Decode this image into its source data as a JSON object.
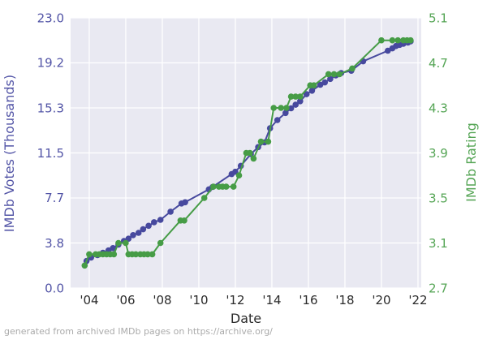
{
  "figure": {
    "footer": "generated from archived IMDb pages on https://archive.org/"
  },
  "chart_data": {
    "type": "line",
    "title": "",
    "xlabel": "Date",
    "grid": true,
    "legend": "none",
    "plot_background": "#e9e9f2",
    "grid_color": "#ffffff",
    "x_axis": {
      "lim": [
        2002.98,
        2022.18
      ],
      "tick_years": [
        2004,
        2006,
        2008,
        2010,
        2012,
        2014,
        2016,
        2018,
        2020,
        2022
      ],
      "tick_labels": [
        "'04",
        "'06",
        "'08",
        "'10",
        "'12",
        "'14",
        "'16",
        "'18",
        "'20",
        "'22"
      ],
      "color": "#2b2b2b"
    },
    "left_axis": {
      "label": "IMDb Votes (Thousands)",
      "lim": [
        0.0,
        23.0
      ],
      "tick_values": [
        0.0,
        3.8333,
        7.6667,
        11.5,
        15.3333,
        19.1667,
        23.0
      ],
      "tick_labels": [
        "0.0",
        "3.8",
        "7.7",
        "11.5",
        "15.3",
        "19.2",
        "23.0"
      ],
      "color": "#5254a6"
    },
    "right_axis": {
      "label": "IMDb Rating",
      "lim": [
        2.7,
        5.1
      ],
      "tick_values": [
        2.7,
        3.1,
        3.5,
        3.9,
        4.3,
        4.7,
        5.1
      ],
      "tick_labels": [
        "2.7",
        "3.1",
        "3.5",
        "3.9",
        "4.3",
        "4.7",
        "5.1"
      ],
      "color": "#55a555"
    },
    "series": [
      {
        "name": "IMDb Votes (Thousands)",
        "axis": "left",
        "color": "#47499e",
        "marker": "circle",
        "x": [
          2003.85,
          2004.1,
          2004.45,
          2004.75,
          2005.05,
          2005.3,
          2005.6,
          2005.9,
          2006.15,
          2006.4,
          2006.7,
          2006.95,
          2007.25,
          2007.55,
          2007.9,
          2008.45,
          2009.05,
          2009.25,
          2010.55,
          2010.75,
          2011.8,
          2012.0,
          2012.3,
          2012.85,
          2013.25,
          2013.6,
          2013.9,
          2014.3,
          2014.75,
          2015.05,
          2015.3,
          2015.55,
          2015.9,
          2016.2,
          2016.65,
          2016.9,
          2017.2,
          2017.5,
          2017.8,
          2018.35,
          2019.0,
          2020.35,
          2020.6,
          2020.8,
          2021.0,
          2021.2,
          2021.45,
          2021.6
        ],
        "y": [
          2.3,
          2.6,
          2.8,
          3.0,
          3.2,
          3.4,
          3.7,
          4.0,
          4.2,
          4.5,
          4.7,
          5.0,
          5.3,
          5.6,
          5.8,
          6.5,
          7.2,
          7.3,
          8.4,
          8.6,
          9.7,
          9.9,
          10.4,
          11.4,
          12.0,
          12.4,
          13.6,
          14.3,
          14.9,
          15.3,
          15.6,
          15.9,
          16.5,
          16.8,
          17.3,
          17.5,
          17.8,
          18.1,
          18.3,
          18.5,
          19.3,
          20.2,
          20.4,
          20.6,
          20.7,
          20.8,
          20.9,
          21.0
        ]
      },
      {
        "name": "IMDb Rating",
        "axis": "right",
        "color": "#469c46",
        "marker": "circle",
        "x": [
          2003.75,
          2004.0,
          2004.35,
          2004.55,
          2004.75,
          2004.95,
          2005.15,
          2005.35,
          2005.6,
          2006.0,
          2006.15,
          2006.35,
          2006.55,
          2006.8,
          2007.0,
          2007.2,
          2007.45,
          2007.9,
          2009.0,
          2009.2,
          2010.3,
          2010.8,
          2011.1,
          2011.3,
          2011.5,
          2011.9,
          2012.2,
          2012.6,
          2012.8,
          2013.0,
          2013.4,
          2013.8,
          2014.1,
          2014.5,
          2014.8,
          2015.05,
          2015.3,
          2015.55,
          2016.1,
          2016.3,
          2017.1,
          2017.4,
          2017.7,
          2018.4,
          2020.0,
          2020.6,
          2020.9,
          2021.2,
          2021.4,
          2021.6
        ],
        "y": [
          2.9,
          3.0,
          3.0,
          3.0,
          3.0,
          3.0,
          3.0,
          3.0,
          3.1,
          3.1,
          3.0,
          3.0,
          3.0,
          3.0,
          3.0,
          3.0,
          3.0,
          3.1,
          3.3,
          3.3,
          3.5,
          3.6,
          3.6,
          3.6,
          3.6,
          3.6,
          3.7,
          3.9,
          3.9,
          3.85,
          4.0,
          4.0,
          4.3,
          4.3,
          4.3,
          4.4,
          4.4,
          4.4,
          4.5,
          4.5,
          4.6,
          4.6,
          4.6,
          4.65,
          4.9,
          4.9,
          4.9,
          4.9,
          4.9,
          4.9
        ]
      }
    ]
  }
}
